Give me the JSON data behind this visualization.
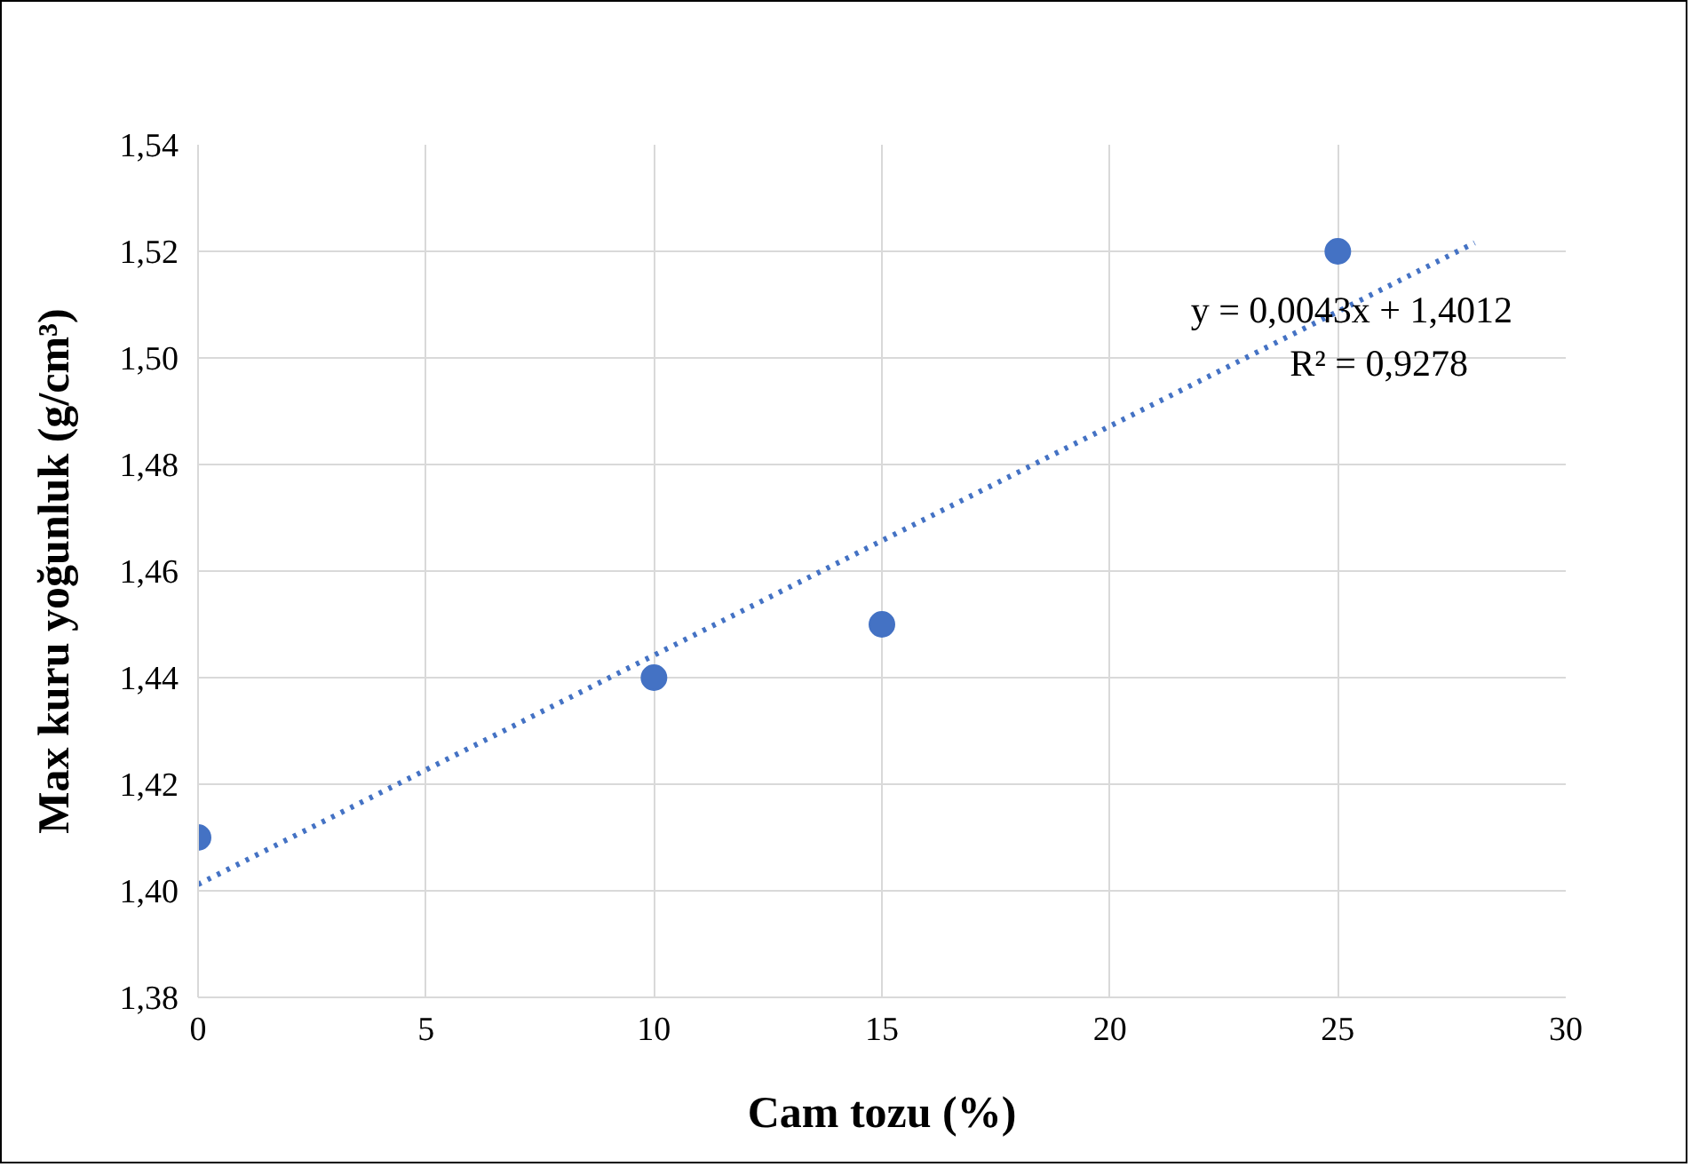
{
  "chart_data": {
    "type": "scatter",
    "xlabel": "Cam tozu (%)",
    "ylabel": "Max kuru yoğunluk (g/cm³)",
    "x": [
      0,
      10,
      15,
      25
    ],
    "series": [
      {
        "color": "#4472c4",
        "values": [
          1.41,
          1.44,
          1.45,
          1.52
        ],
        "marker": "circle"
      },
      {
        "type": "line",
        "color": "#4472c4",
        "x": [
          0,
          28
        ],
        "values": [
          1.4012,
          1.5216
        ],
        "line_style": "dotted",
        "marker": "none"
      }
    ],
    "xlim": [
      0,
      30
    ],
    "xticks": [
      0,
      5,
      10,
      15,
      20,
      25,
      30
    ],
    "ylim": [
      1.38,
      1.54
    ],
    "yticks": [
      {
        "value": 1.38,
        "label": "1,38"
      },
      {
        "value": 1.4,
        "label": "1,40"
      },
      {
        "value": 1.42,
        "label": "1,42"
      },
      {
        "value": 1.44,
        "label": "1,44"
      },
      {
        "value": 1.46,
        "label": "1,46"
      },
      {
        "value": 1.48,
        "label": "1,48"
      },
      {
        "value": 1.5,
        "label": "1,50"
      },
      {
        "value": 1.52,
        "label": "1,52"
      },
      {
        "value": 1.54,
        "label": "1,54"
      }
    ],
    "grid": true,
    "annotations": [
      "y = 0,0043x + 1,4012",
      "R² = 0,9278"
    ]
  }
}
